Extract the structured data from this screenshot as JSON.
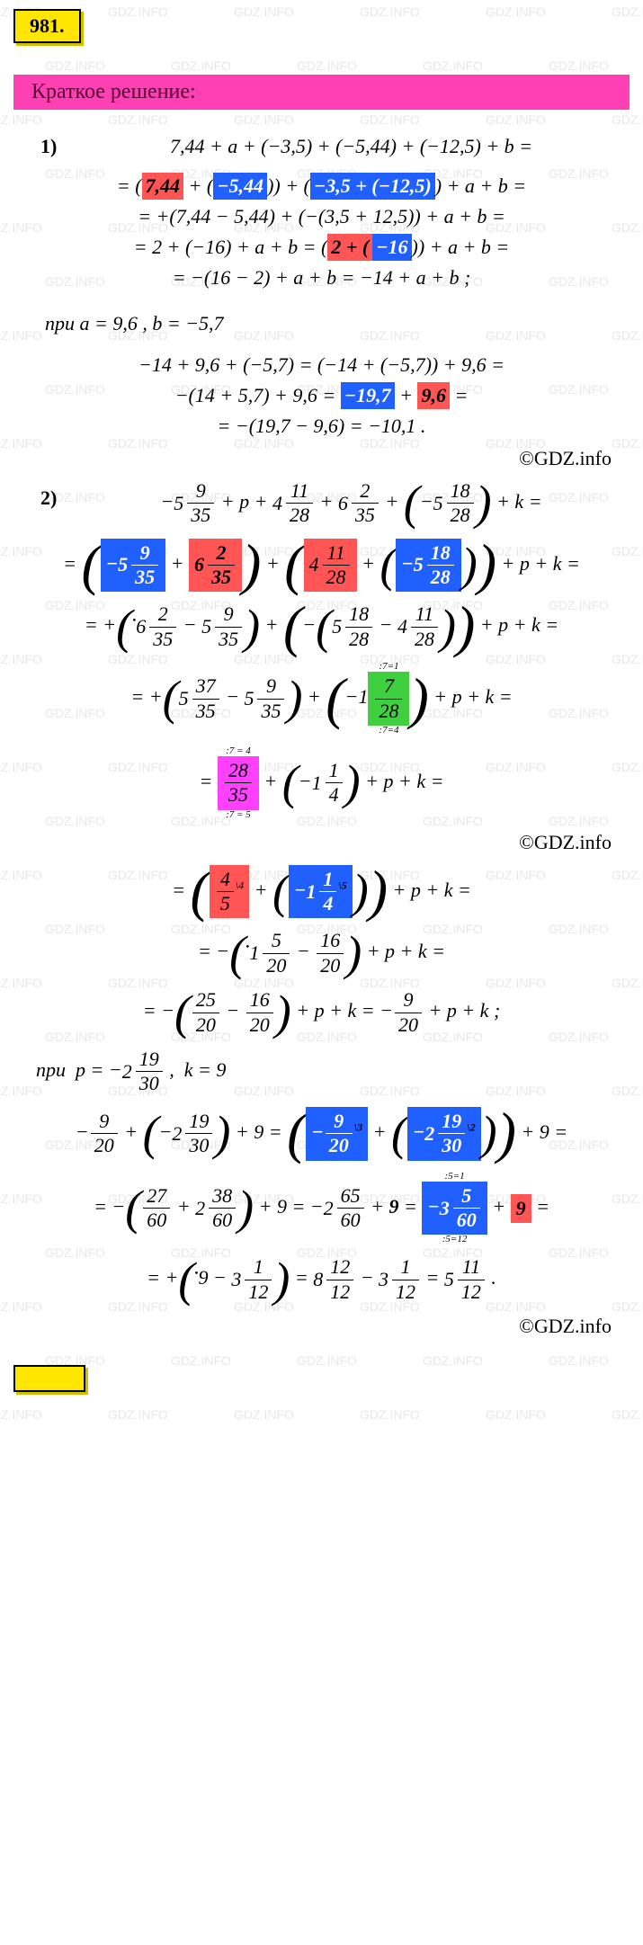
{
  "badge": "981.",
  "section_title": "Краткое решение:",
  "watermark_text": "GDZ.INFO",
  "credit": "©GDZ.info",
  "colors": {
    "badge_bg": "#ffe600",
    "badge_border": "#000000",
    "section_bg": "#ff3fb4",
    "section_text": "#5a0030",
    "hl_red": "#ff5555",
    "hl_blue": "#2060ff",
    "hl_green": "#3fcf3f",
    "hl_magenta": "#ff40ff",
    "watermark": "#e8e8e8",
    "text": "#000000",
    "bg": "#ffffff"
  },
  "problem1": {
    "num": "1)",
    "line1": "7,44 + a + (−3,5) + (−5,44) + (−12,5) + b =",
    "line2_pre": "= (",
    "line2_r": "7,44",
    "line2_mid1": " + (",
    "line2_b1": "−5,44",
    "line2_mid2": ")) + (",
    "line2_b2": "−3,5 + (−12,5)",
    "line2_post": ") + a + b =",
    "line3": "= +(7,44 − 5,44) + (−(3,5 + 12,5)) + a + b =",
    "line4_pre": "= 2 + (−16) + a + b = (",
    "line4_r": "2 + (",
    "line4_b": "−16",
    "line4_post": ")) + a + b =",
    "line5": "= −(16 − 2) + a + b = −14 + a + b ;",
    "given": "при  a = 9,6 ,  b = −5,7",
    "line6": "−14 + 9,6 + (−5,7) = (−14 + (−5,7)) + 9,6 =",
    "line7_pre": "−(14 + 5,7) + 9,6 = ",
    "line7_b": "−19,7",
    "line7_mid": " + ",
    "line7_r": "9,6",
    "line7_post": " =",
    "line8": "= −(19,7 − 9,6) = −10,1 ."
  },
  "problem2": {
    "num": "2)",
    "f1": {
      "s": "−",
      "w": "5",
      "n": "9",
      "d": "35"
    },
    "f2": {
      "w": "4",
      "n": "11",
      "d": "28"
    },
    "f3": {
      "w": "6",
      "n": "2",
      "d": "35"
    },
    "f4": {
      "s": "−",
      "w": "5",
      "n": "18",
      "d": "28"
    },
    "line2_r_w": "6",
    "line2_r_n": "2",
    "line2_r_d": "35",
    "line2_b1_w": "5",
    "line2_b1_n": "9",
    "line2_b1_d": "35",
    "line2_b2_w": "5",
    "line2_b2_n": "18",
    "line2_b2_d": "28",
    "f5": {
      "w": "4",
      "n": "11",
      "d": "28"
    },
    "f6": {
      "w": "6",
      "n": "2",
      "d": "35"
    },
    "f7": {
      "w": "5",
      "n": "9",
      "d": "35"
    },
    "f8": {
      "w": "5",
      "n": "18",
      "d": "28"
    },
    "f9": {
      "w": "4",
      "n": "11",
      "d": "28"
    },
    "f10": {
      "w": "5",
      "n": "37",
      "d": "35"
    },
    "f11": {
      "w": "5",
      "n": "9",
      "d": "35"
    },
    "green_n": "7",
    "green_d": "28",
    "green_top": ":7=1",
    "green_bot": ":7=4",
    "mag_n": "28",
    "mag_d": "35",
    "mag_top": ":7 = 4",
    "mag_bot": ":7 = 5",
    "f12": {
      "w": "1",
      "n": "1",
      "d": "4"
    },
    "red_n": "4",
    "red_d": "5",
    "red_sup": "\\4",
    "blue_w": "1",
    "blue_n": "1",
    "blue_d": "4",
    "blue_sup": "\\5",
    "f13": {
      "w": "1",
      "n": "5",
      "d": "20"
    },
    "f14": {
      "n": "16",
      "d": "20"
    },
    "f15": {
      "n": "25",
      "d": "20"
    },
    "f16": {
      "n": "16",
      "d": "20"
    },
    "f17": {
      "n": "9",
      "d": "20"
    },
    "given_p_w": "2",
    "given_p_n": "19",
    "given_p_d": "30",
    "given_k": "9",
    "f18": {
      "n": "9",
      "d": "20"
    },
    "f19": {
      "w": "2",
      "n": "19",
      "d": "30"
    },
    "box_b1_n": "9",
    "box_b1_d": "20",
    "box_b1_sup": "\\3",
    "box_b2_w": "2",
    "box_b2_n": "19",
    "box_b2_d": "30",
    "box_b2_sup": "\\2",
    "f20": {
      "n": "27",
      "d": "60"
    },
    "f21": {
      "w": "2",
      "n": "38",
      "d": "60"
    },
    "f22": {
      "w": "2",
      "n": "65",
      "d": "60"
    },
    "nine": "9",
    "box_b3_w": "3",
    "box_b3_n": "5",
    "box_b3_d": "60",
    "box_b3_top": ":5=1",
    "box_b3_bot": ":5=12",
    "box_r2": "9",
    "f23": {
      "w": "3",
      "n": "1",
      "d": "12"
    },
    "f24": {
      "w": "8",
      "n": "12",
      "d": "12"
    },
    "f25": {
      "w": "3",
      "n": "1",
      "d": "12"
    },
    "f26": {
      "w": "5",
      "n": "11",
      "d": "12"
    }
  }
}
